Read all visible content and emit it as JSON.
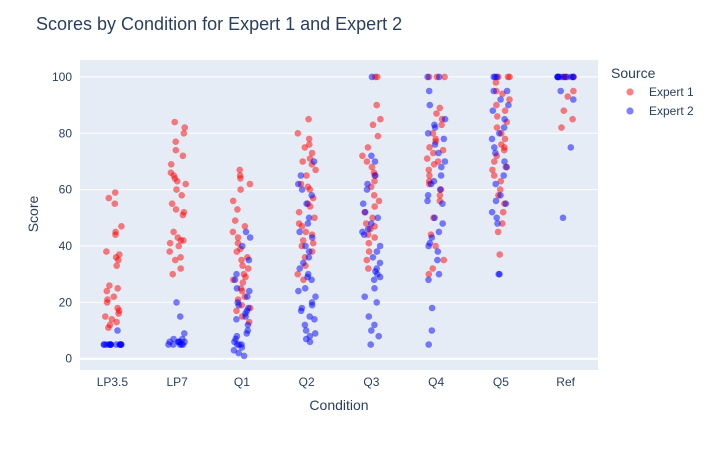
{
  "chart_data": {
    "type": "scatter",
    "title": "Scores by Condition for Expert 1 and Expert 2",
    "xlabel": "Condition",
    "ylabel": "Score",
    "categories": [
      "LP3.5",
      "LP7",
      "Q1",
      "Q2",
      "Q3",
      "Q4",
      "Q5",
      "Ref"
    ],
    "ylim": [
      -4,
      106
    ],
    "yticks": [
      0,
      20,
      40,
      60,
      80,
      100
    ],
    "grid": true,
    "legend": {
      "title": "Source",
      "placement": "right"
    },
    "series": [
      {
        "name": "Expert 1",
        "color": "#ff0000",
        "values": [
          [
            59,
            57,
            55,
            47,
            45,
            44,
            38,
            37,
            36,
            35,
            33,
            26,
            25,
            24,
            22,
            21,
            20,
            18,
            17,
            16,
            15,
            14,
            13,
            12,
            11
          ],
          [
            84,
            82,
            80,
            77,
            74,
            72,
            69,
            66,
            65,
            64,
            63,
            62,
            60,
            58,
            55,
            53,
            52,
            51,
            45,
            43,
            42,
            42,
            41,
            40,
            38,
            36,
            35,
            32,
            30
          ],
          [
            67,
            65,
            64,
            62,
            60,
            56,
            53,
            49,
            47,
            45,
            43,
            41,
            39,
            38,
            36,
            35,
            33,
            32,
            30,
            29,
            28,
            27,
            25,
            24,
            22,
            21,
            19,
            18,
            17,
            15,
            13
          ],
          [
            85,
            80,
            78,
            76,
            75,
            73,
            71,
            70,
            69,
            67,
            65,
            62,
            61,
            60,
            57,
            55,
            54,
            52,
            50,
            48,
            47,
            45,
            44,
            42,
            41,
            40,
            38,
            36,
            33,
            30,
            28
          ],
          [
            100,
            100,
            90,
            85,
            83,
            79,
            75,
            72,
            70,
            68,
            66,
            65,
            63,
            61,
            58,
            56,
            54,
            52,
            50,
            48,
            47,
            46,
            44,
            43,
            41,
            38,
            35,
            32
          ],
          [
            100,
            100,
            100,
            89,
            87,
            85,
            83,
            80,
            78,
            77,
            75,
            74,
            73,
            71,
            70,
            69,
            67,
            65,
            63,
            62,
            60,
            58,
            56,
            50,
            44,
            40,
            35,
            32,
            30
          ],
          [
            100,
            100,
            100,
            98,
            95,
            94,
            92,
            90,
            88,
            86,
            84,
            82,
            80,
            78,
            76,
            75,
            74,
            72,
            70,
            68,
            67,
            65,
            63,
            60,
            58,
            55,
            52,
            48,
            45,
            37
          ],
          [
            100,
            100,
            100,
            100,
            95,
            93,
            88,
            85,
            82
          ]
        ]
      },
      {
        "name": "Expert 2",
        "color": "#0000ff",
        "values": [
          [
            5,
            5,
            5,
            5,
            5,
            5,
            5,
            5,
            5,
            5,
            5,
            5,
            5,
            5,
            10
          ],
          [
            20,
            15,
            9,
            7,
            7,
            6,
            6,
            6,
            6,
            6,
            5,
            5,
            5,
            5,
            5
          ],
          [
            45,
            43,
            40,
            35,
            30,
            28,
            25,
            24,
            22,
            20,
            19,
            18,
            17,
            16,
            15,
            14,
            12,
            10,
            9,
            8,
            7,
            6,
            5,
            5,
            5,
            4,
            3,
            2,
            1
          ],
          [
            70,
            65,
            62,
            60,
            58,
            55,
            50,
            48,
            45,
            43,
            40,
            38,
            36,
            34,
            32,
            30,
            29,
            28,
            25,
            24,
            22,
            20,
            19,
            18,
            17,
            15,
            14,
            12,
            10,
            9,
            8,
            7,
            6
          ],
          [
            100,
            72,
            70,
            65,
            62,
            60,
            55,
            52,
            50,
            48,
            46,
            45,
            44,
            40,
            38,
            36,
            34,
            32,
            31,
            30,
            29,
            28,
            25,
            22,
            20,
            15,
            12,
            10,
            8,
            5
          ],
          [
            100,
            100,
            95,
            90,
            85,
            83,
            82,
            80,
            78,
            76,
            73,
            70,
            68,
            65,
            63,
            62,
            60,
            58,
            56,
            55,
            50,
            48,
            45,
            43,
            41,
            40,
            38,
            35,
            30,
            28,
            18,
            10,
            5
          ],
          [
            100,
            100,
            100,
            95,
            95,
            92,
            90,
            88,
            85,
            82,
            80,
            78,
            75,
            73,
            70,
            68,
            65,
            62,
            58,
            56,
            55,
            52,
            50,
            48,
            30,
            30
          ],
          [
            100,
            100,
            100,
            100,
            100,
            100,
            100,
            100,
            100,
            100,
            95,
            92,
            75,
            50
          ]
        ]
      }
    ]
  }
}
